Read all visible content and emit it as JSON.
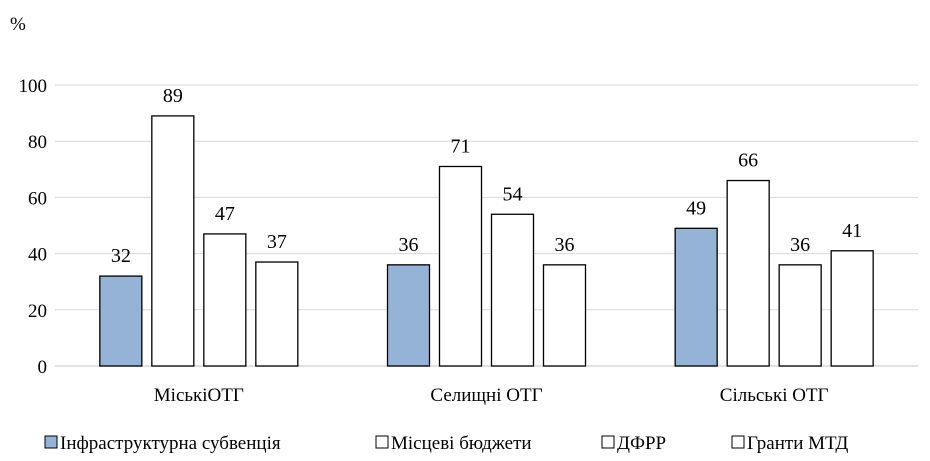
{
  "chart_data": {
    "type": "bar",
    "title": "",
    "ylabel": "%",
    "xlabel": "",
    "ylim": [
      0,
      100
    ],
    "yticks": [
      0,
      20,
      40,
      60,
      80,
      100
    ],
    "grid": true,
    "legend_position": "bottom",
    "categories": [
      "МіськіОТГ",
      "Селищні ОТГ",
      "Сільські ОТГ"
    ],
    "series": [
      {
        "name": "Інфраструктурна субвенція",
        "values": [
          32,
          36,
          49
        ],
        "color": "#95b3d7",
        "stroke": "#000000"
      },
      {
        "name": "Місцеві бюджети",
        "values": [
          89,
          71,
          66
        ],
        "color": "#ffffff",
        "stroke": "#000000"
      },
      {
        "name": "ДФРР",
        "values": [
          47,
          54,
          36
        ],
        "color": "#ffffff",
        "stroke": "#000000"
      },
      {
        "name": "Гранти МТД",
        "values": [
          37,
          36,
          41
        ],
        "color": "#ffffff",
        "stroke": "#000000"
      }
    ]
  }
}
